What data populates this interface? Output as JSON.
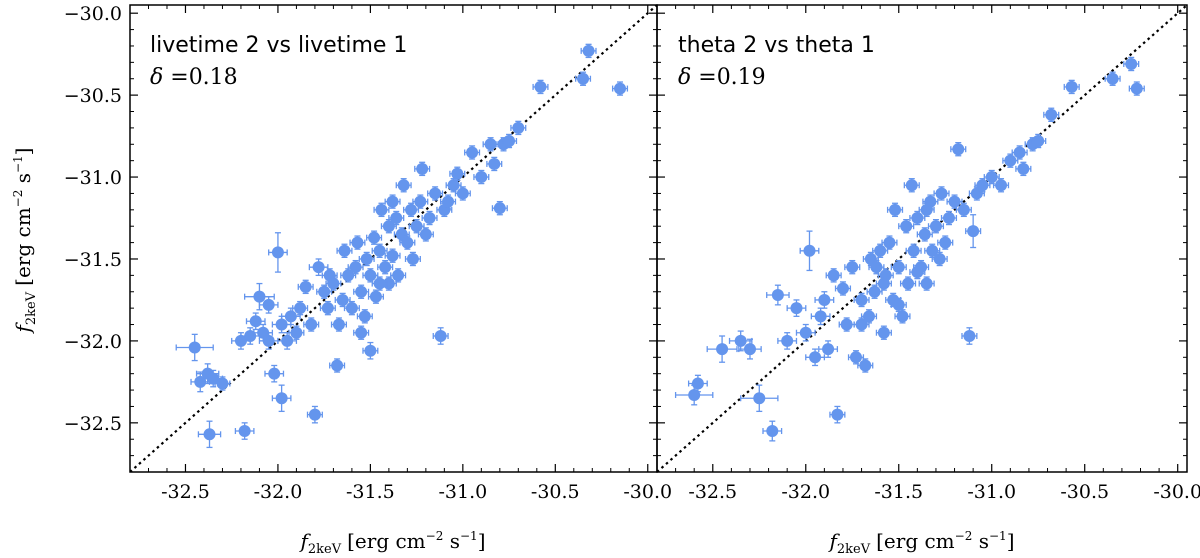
{
  "chart_data": [
    {
      "type": "scatter",
      "panel": "left",
      "annotation_line1": "livetime 2 vs livetime 1",
      "delta_symbol": "δ",
      "delta_eq": " =",
      "delta_value": "0.18",
      "xlim": [
        -32.8,
        -29.95
      ],
      "ylim": [
        -32.8,
        -29.95
      ],
      "x_ticks": [
        -32.5,
        -32.0,
        -31.5,
        -31.0,
        -30.5,
        -30.0
      ],
      "x_tick_labels": [
        "-32.5",
        "-32.0",
        "-31.5",
        "-31.0",
        "-30.5",
        "-30.0"
      ],
      "y_ticks": [
        -32.5,
        -32.0,
        -31.5,
        -31.0,
        -30.5,
        -30.0
      ],
      "y_tick_labels": [
        "−32.5",
        "−32.0",
        "−31.5",
        "−31.0",
        "−30.5",
        "−30.0"
      ],
      "reference_line": "1:1 dotted",
      "marker_color": "#6495ed",
      "points": [
        [
          -32.45,
          -32.04,
          0.1,
          0.08
        ],
        [
          -32.42,
          -32.25,
          0.05,
          0.06
        ],
        [
          -32.38,
          -32.2,
          0.06,
          0.06
        ],
        [
          -32.37,
          -32.57,
          0.06,
          0.08
        ],
        [
          -32.35,
          -32.23,
          0.05,
          0.05
        ],
        [
          -32.3,
          -32.26,
          0.04,
          0.04
        ],
        [
          -32.2,
          -32.0,
          0.05,
          0.05
        ],
        [
          -32.18,
          -32.55,
          0.05,
          0.05
        ],
        [
          -32.15,
          -31.97,
          0.05,
          0.05
        ],
        [
          -32.12,
          -31.88,
          0.05,
          0.05
        ],
        [
          -32.1,
          -31.73,
          0.08,
          0.08
        ],
        [
          -32.08,
          -31.95,
          0.05,
          0.05
        ],
        [
          -32.05,
          -32.0,
          0.05,
          0.05
        ],
        [
          -32.05,
          -31.78,
          0.05,
          0.05
        ],
        [
          -32.02,
          -32.2,
          0.05,
          0.05
        ],
        [
          -32.0,
          -31.46,
          0.05,
          0.12
        ],
        [
          -31.98,
          -32.35,
          0.05,
          0.08
        ],
        [
          -31.98,
          -31.9,
          0.05,
          0.05
        ],
        [
          -31.95,
          -32.0,
          0.05,
          0.05
        ],
        [
          -31.93,
          -31.85,
          0.05,
          0.05
        ],
        [
          -31.9,
          -31.95,
          0.04,
          0.04
        ],
        [
          -31.88,
          -31.8,
          0.04,
          0.04
        ],
        [
          -31.85,
          -31.67,
          0.04,
          0.04
        ],
        [
          -31.82,
          -31.9,
          0.04,
          0.04
        ],
        [
          -31.8,
          -32.45,
          0.04,
          0.05
        ],
        [
          -31.78,
          -31.55,
          0.05,
          0.05
        ],
        [
          -31.75,
          -31.7,
          0.04,
          0.04
        ],
        [
          -31.73,
          -31.8,
          0.04,
          0.04
        ],
        [
          -31.7,
          -31.65,
          0.04,
          0.04
        ],
        [
          -31.68,
          -32.15,
          0.04,
          0.04
        ],
        [
          -31.67,
          -31.9,
          0.04,
          0.04
        ],
        [
          -31.65,
          -31.75,
          0.04,
          0.04
        ],
        [
          -31.64,
          -31.45,
          0.04,
          0.04
        ],
        [
          -31.62,
          -31.6,
          0.04,
          0.04
        ],
        [
          -31.6,
          -31.8,
          0.04,
          0.04
        ],
        [
          -31.58,
          -31.55,
          0.04,
          0.04
        ],
        [
          -31.57,
          -31.4,
          0.04,
          0.04
        ],
        [
          -31.55,
          -31.7,
          0.04,
          0.04
        ],
        [
          -31.53,
          -31.85,
          0.04,
          0.04
        ],
        [
          -31.52,
          -31.5,
          0.04,
          0.04
        ],
        [
          -31.5,
          -31.6,
          0.04,
          0.04
        ],
        [
          -31.5,
          -32.06,
          0.04,
          0.05
        ],
        [
          -31.48,
          -31.37,
          0.04,
          0.04
        ],
        [
          -31.47,
          -31.73,
          0.04,
          0.04
        ],
        [
          -31.45,
          -31.45,
          0.04,
          0.04
        ],
        [
          -31.44,
          -31.2,
          0.04,
          0.04
        ],
        [
          -31.42,
          -31.55,
          0.04,
          0.04
        ],
        [
          -31.4,
          -31.65,
          0.04,
          0.04
        ],
        [
          -31.4,
          -31.3,
          0.04,
          0.04
        ],
        [
          -31.38,
          -31.48,
          0.04,
          0.04
        ],
        [
          -31.36,
          -31.25,
          0.04,
          0.04
        ],
        [
          -31.35,
          -31.6,
          0.04,
          0.04
        ],
        [
          -31.33,
          -31.35,
          0.04,
          0.04
        ],
        [
          -31.32,
          -31.05,
          0.04,
          0.04
        ],
        [
          -31.3,
          -31.4,
          0.04,
          0.04
        ],
        [
          -31.28,
          -31.2,
          0.04,
          0.04
        ],
        [
          -31.27,
          -31.5,
          0.04,
          0.04
        ],
        [
          -31.25,
          -31.3,
          0.04,
          0.04
        ],
        [
          -31.23,
          -31.15,
          0.04,
          0.04
        ],
        [
          -31.22,
          -30.95,
          0.04,
          0.04
        ],
        [
          -31.2,
          -31.35,
          0.04,
          0.04
        ],
        [
          -31.18,
          -31.25,
          0.04,
          0.04
        ],
        [
          -31.15,
          -31.1,
          0.04,
          0.04
        ],
        [
          -31.12,
          -31.97,
          0.04,
          0.05
        ],
        [
          -31.1,
          -31.2,
          0.04,
          0.04
        ],
        [
          -31.08,
          -31.15,
          0.04,
          0.04
        ],
        [
          -31.05,
          -31.05,
          0.04,
          0.04
        ],
        [
          -31.03,
          -30.98,
          0.04,
          0.04
        ],
        [
          -31.0,
          -31.1,
          0.04,
          0.04
        ],
        [
          -30.95,
          -30.85,
          0.04,
          0.04
        ],
        [
          -30.9,
          -31.0,
          0.04,
          0.04
        ],
        [
          -30.85,
          -30.8,
          0.04,
          0.04
        ],
        [
          -30.83,
          -30.92,
          0.04,
          0.04
        ],
        [
          -30.8,
          -31.19,
          0.04,
          0.04
        ],
        [
          -30.78,
          -30.8,
          0.04,
          0.04
        ],
        [
          -30.75,
          -30.78,
          0.04,
          0.04
        ],
        [
          -30.7,
          -30.7,
          0.04,
          0.04
        ],
        [
          -30.58,
          -30.45,
          0.04,
          0.04
        ],
        [
          -30.35,
          -30.4,
          0.04,
          0.04
        ],
        [
          -30.32,
          -30.23,
          0.04,
          0.04
        ],
        [
          -30.15,
          -30.46,
          0.04,
          0.04
        ],
        [
          -31.55,
          -31.95,
          0.04,
          0.04
        ],
        [
          -31.72,
          -31.6,
          0.04,
          0.04
        ],
        [
          -31.45,
          -31.65,
          0.04,
          0.04
        ],
        [
          -31.38,
          -31.15,
          0.04,
          0.04
        ]
      ]
    },
    {
      "type": "scatter",
      "panel": "right",
      "annotation_line1": "theta 2 vs theta 1",
      "delta_symbol": "δ",
      "delta_eq": " =",
      "delta_value": "0.19",
      "xlim": [
        -32.8,
        -29.95
      ],
      "ylim": [
        -32.8,
        -29.95
      ],
      "x_ticks": [
        -32.5,
        -32.0,
        -31.5,
        -31.0,
        -30.5,
        -30.0
      ],
      "x_tick_labels": [
        "-32.5",
        "-32.0",
        "-31.5",
        "-31.0",
        "-30.5",
        "-30.0"
      ],
      "reference_line": "1:1 dotted",
      "marker_color": "#6495ed",
      "points": [
        [
          -32.6,
          -32.33,
          0.1,
          0.06
        ],
        [
          -32.58,
          -32.26,
          0.05,
          0.05
        ],
        [
          -32.45,
          -32.05,
          0.08,
          0.08
        ],
        [
          -32.35,
          -32.0,
          0.06,
          0.06
        ],
        [
          -32.3,
          -32.05,
          0.06,
          0.06
        ],
        [
          -32.25,
          -32.35,
          0.1,
          0.08
        ],
        [
          -32.18,
          -32.55,
          0.05,
          0.06
        ],
        [
          -32.15,
          -31.72,
          0.06,
          0.06
        ],
        [
          -32.1,
          -32.0,
          0.05,
          0.05
        ],
        [
          -32.05,
          -31.8,
          0.05,
          0.05
        ],
        [
          -32.0,
          -31.95,
          0.05,
          0.05
        ],
        [
          -31.98,
          -31.45,
          0.05,
          0.12
        ],
        [
          -31.95,
          -32.1,
          0.05,
          0.05
        ],
        [
          -31.92,
          -31.85,
          0.05,
          0.05
        ],
        [
          -31.9,
          -31.75,
          0.05,
          0.05
        ],
        [
          -31.88,
          -32.05,
          0.05,
          0.05
        ],
        [
          -31.85,
          -31.6,
          0.04,
          0.04
        ],
        [
          -31.83,
          -32.45,
          0.04,
          0.05
        ],
        [
          -31.8,
          -31.68,
          0.04,
          0.04
        ],
        [
          -31.78,
          -31.9,
          0.04,
          0.04
        ],
        [
          -31.75,
          -31.55,
          0.04,
          0.04
        ],
        [
          -31.73,
          -32.1,
          0.04,
          0.04
        ],
        [
          -31.7,
          -31.75,
          0.04,
          0.04
        ],
        [
          -31.68,
          -32.15,
          0.04,
          0.04
        ],
        [
          -31.66,
          -31.85,
          0.04,
          0.04
        ],
        [
          -31.65,
          -31.5,
          0.04,
          0.04
        ],
        [
          -31.63,
          -31.7,
          0.04,
          0.04
        ],
        [
          -31.6,
          -31.45,
          0.04,
          0.04
        ],
        [
          -31.58,
          -31.95,
          0.04,
          0.04
        ],
        [
          -31.57,
          -31.6,
          0.04,
          0.04
        ],
        [
          -31.55,
          -31.4,
          0.04,
          0.04
        ],
        [
          -31.53,
          -31.75,
          0.04,
          0.04
        ],
        [
          -31.52,
          -31.2,
          0.04,
          0.04
        ],
        [
          -31.5,
          -31.55,
          0.04,
          0.04
        ],
        [
          -31.48,
          -31.85,
          0.04,
          0.04
        ],
        [
          -31.46,
          -31.3,
          0.04,
          0.04
        ],
        [
          -31.45,
          -31.65,
          0.04,
          0.04
        ],
        [
          -31.43,
          -31.05,
          0.04,
          0.04
        ],
        [
          -31.42,
          -31.45,
          0.04,
          0.04
        ],
        [
          -31.4,
          -31.25,
          0.04,
          0.04
        ],
        [
          -31.38,
          -31.55,
          0.04,
          0.04
        ],
        [
          -31.36,
          -31.35,
          0.04,
          0.04
        ],
        [
          -31.35,
          -31.65,
          0.04,
          0.04
        ],
        [
          -31.33,
          -31.15,
          0.04,
          0.04
        ],
        [
          -31.32,
          -31.45,
          0.04,
          0.04
        ],
        [
          -31.3,
          -31.3,
          0.04,
          0.04
        ],
        [
          -31.28,
          -31.5,
          0.04,
          0.04
        ],
        [
          -31.27,
          -31.1,
          0.04,
          0.04
        ],
        [
          -31.25,
          -31.4,
          0.04,
          0.04
        ],
        [
          -31.23,
          -31.25,
          0.04,
          0.04
        ],
        [
          -31.2,
          -31.15,
          0.04,
          0.04
        ],
        [
          -31.18,
          -30.83,
          0.04,
          0.04
        ],
        [
          -31.15,
          -31.2,
          0.04,
          0.04
        ],
        [
          -31.12,
          -31.97,
          0.04,
          0.05
        ],
        [
          -31.1,
          -31.33,
          0.04,
          0.1
        ],
        [
          -31.08,
          -31.1,
          0.04,
          0.04
        ],
        [
          -31.05,
          -31.05,
          0.04,
          0.04
        ],
        [
          -31.0,
          -31.0,
          0.04,
          0.04
        ],
        [
          -30.95,
          -31.05,
          0.04,
          0.04
        ],
        [
          -30.9,
          -30.9,
          0.04,
          0.04
        ],
        [
          -30.85,
          -30.85,
          0.04,
          0.04
        ],
        [
          -30.83,
          -30.95,
          0.04,
          0.04
        ],
        [
          -30.78,
          -30.8,
          0.04,
          0.04
        ],
        [
          -30.75,
          -30.78,
          0.04,
          0.04
        ],
        [
          -30.68,
          -30.62,
          0.04,
          0.04
        ],
        [
          -30.57,
          -30.45,
          0.04,
          0.04
        ],
        [
          -30.35,
          -30.4,
          0.04,
          0.04
        ],
        [
          -30.25,
          -30.31,
          0.04,
          0.04
        ],
        [
          -30.22,
          -30.46,
          0.04,
          0.04
        ],
        [
          -31.5,
          -31.78,
          0.04,
          0.04
        ],
        [
          -31.62,
          -31.55,
          0.04,
          0.04
        ],
        [
          -31.4,
          -31.58,
          0.04,
          0.04
        ],
        [
          -31.35,
          -31.2,
          0.04,
          0.04
        ],
        [
          -31.58,
          -31.65,
          0.04,
          0.04
        ],
        [
          -31.7,
          -31.9,
          0.04,
          0.04
        ]
      ]
    }
  ],
  "ylabel_main": "f",
  "ylabel_sub": "2keV",
  "ylabel_unit": "[erg cm",
  "ylabel_exp1": "−2",
  "ylabel_mid": " s",
  "ylabel_exp2": "−1",
  "ylabel_end": "]",
  "xlabel_main": "f",
  "xlabel_sub": "2keV",
  "xlabel_unit": "[erg cm",
  "xlabel_exp1": "−2",
  "xlabel_mid": " s",
  "xlabel_exp2": "−1",
  "xlabel_end": "]"
}
